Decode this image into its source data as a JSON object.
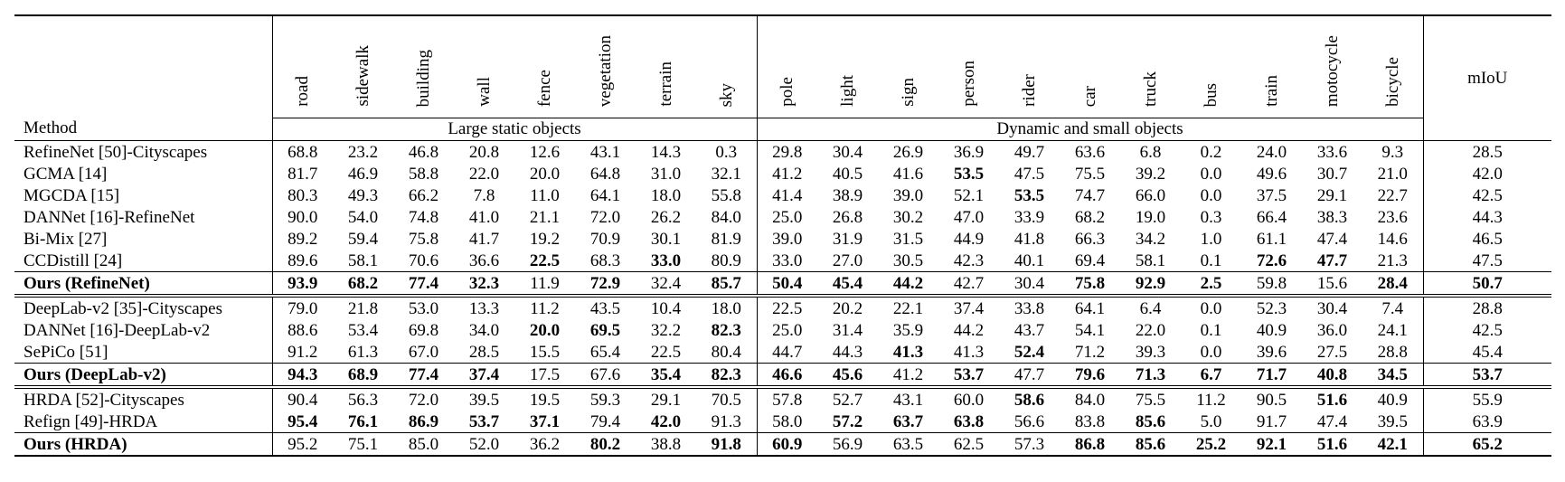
{
  "header": {
    "method": "Method",
    "miou": "mIoU",
    "group_static": "Large static objects",
    "group_dynamic": "Dynamic and small objects",
    "static_classes": [
      "road",
      "sidewalk",
      "building",
      "wall",
      "fence",
      "vegetation",
      "terrain",
      "sky"
    ],
    "dynamic_classes": [
      "pole",
      "light",
      "sign",
      "person",
      "rider",
      "car",
      "truck",
      "bus",
      "train",
      "motocycle",
      "bicycle"
    ]
  },
  "sections": [
    {
      "rows": [
        {
          "method": "RefineNet [50]-Cityscapes",
          "values": [
            "68.8",
            "23.2",
            "46.8",
            "20.8",
            "12.6",
            "43.1",
            "14.3",
            "0.3",
            "29.8",
            "30.4",
            "26.9",
            "36.9",
            "49.7",
            "63.6",
            "6.8",
            "0.2",
            "24.0",
            "33.6",
            "9.3"
          ],
          "miou": "28.5",
          "bold": []
        },
        {
          "method": "GCMA [14]",
          "values": [
            "81.7",
            "46.9",
            "58.8",
            "22.0",
            "20.0",
            "64.8",
            "31.0",
            "32.1",
            "41.2",
            "40.5",
            "41.6",
            "53.5",
            "47.5",
            "75.5",
            "39.2",
            "0.0",
            "49.6",
            "30.7",
            "21.0"
          ],
          "miou": "42.0",
          "bold": [
            11
          ]
        },
        {
          "method": "MGCDA [15]",
          "values": [
            "80.3",
            "49.3",
            "66.2",
            "7.8",
            "11.0",
            "64.1",
            "18.0",
            "55.8",
            "41.4",
            "38.9",
            "39.0",
            "52.1",
            "53.5",
            "74.7",
            "66.0",
            "0.0",
            "37.5",
            "29.1",
            "22.7"
          ],
          "miou": "42.5",
          "bold": [
            12
          ]
        },
        {
          "method": "DANNet [16]-RefineNet",
          "values": [
            "90.0",
            "54.0",
            "74.8",
            "41.0",
            "21.1",
            "72.0",
            "26.2",
            "84.0",
            "25.0",
            "26.8",
            "30.2",
            "47.0",
            "33.9",
            "68.2",
            "19.0",
            "0.3",
            "66.4",
            "38.3",
            "23.6"
          ],
          "miou": "44.3",
          "bold": []
        },
        {
          "method": "Bi-Mix [27]",
          "values": [
            "89.2",
            "59.4",
            "75.8",
            "41.7",
            "19.2",
            "70.9",
            "30.1",
            "81.9",
            "39.0",
            "31.9",
            "31.5",
            "44.9",
            "41.8",
            "66.3",
            "34.2",
            "1.0",
            "61.1",
            "47.4",
            "14.6"
          ],
          "miou": "46.5",
          "bold": []
        },
        {
          "method": "CCDistill [24]",
          "values": [
            "89.6",
            "58.1",
            "70.6",
            "36.6",
            "22.5",
            "68.3",
            "33.0",
            "80.9",
            "33.0",
            "27.0",
            "30.5",
            "42.3",
            "40.1",
            "69.4",
            "58.1",
            "0.1",
            "72.6",
            "47.7",
            "21.3"
          ],
          "miou": "47.5",
          "bold": [
            4,
            6,
            16,
            17
          ]
        },
        {
          "method": "Ours (RefineNet)",
          "method_bold": true,
          "values": [
            "93.9",
            "68.2",
            "77.4",
            "32.3",
            "11.9",
            "72.9",
            "32.4",
            "85.7",
            "50.4",
            "45.4",
            "44.2",
            "42.7",
            "30.4",
            "75.8",
            "92.9",
            "2.5",
            "59.8",
            "15.6",
            "28.4"
          ],
          "miou": "50.7",
          "miou_bold": true,
          "bold": [
            0,
            1,
            2,
            3,
            5,
            7,
            8,
            9,
            10,
            13,
            14,
            15,
            18
          ]
        }
      ]
    },
    {
      "rows": [
        {
          "method": "DeepLab-v2 [35]-Cityscapes",
          "values": [
            "79.0",
            "21.8",
            "53.0",
            "13.3",
            "11.2",
            "43.5",
            "10.4",
            "18.0",
            "22.5",
            "20.2",
            "22.1",
            "37.4",
            "33.8",
            "64.1",
            "6.4",
            "0.0",
            "52.3",
            "30.4",
            "7.4"
          ],
          "miou": "28.8",
          "bold": []
        },
        {
          "method": "DANNet [16]-DeepLab-v2",
          "values": [
            "88.6",
            "53.4",
            "69.8",
            "34.0",
            "20.0",
            "69.5",
            "32.2",
            "82.3",
            "25.0",
            "31.4",
            "35.9",
            "44.2",
            "43.7",
            "54.1",
            "22.0",
            "0.1",
            "40.9",
            "36.0",
            "24.1"
          ],
          "miou": "42.5",
          "bold": [
            4,
            5,
            7
          ]
        },
        {
          "method": "SePiCo [51]",
          "values": [
            "91.2",
            "61.3",
            "67.0",
            "28.5",
            "15.5",
            "65.4",
            "22.5",
            "80.4",
            "44.7",
            "44.3",
            "41.3",
            "41.3",
            "52.4",
            "71.2",
            "39.3",
            "0.0",
            "39.6",
            "27.5",
            "28.8"
          ],
          "miou": "45.4",
          "bold": [
            10,
            12
          ]
        },
        {
          "method": "Ours (DeepLab-v2)",
          "method_bold": true,
          "values": [
            "94.3",
            "68.9",
            "77.4",
            "37.4",
            "17.5",
            "67.6",
            "35.4",
            "82.3",
            "46.6",
            "45.6",
            "41.2",
            "53.7",
            "47.7",
            "79.6",
            "71.3",
            "6.7",
            "71.7",
            "40.8",
            "34.5"
          ],
          "miou": "53.7",
          "miou_bold": true,
          "bold": [
            0,
            1,
            2,
            3,
            6,
            7,
            8,
            9,
            11,
            13,
            14,
            15,
            16,
            17,
            18
          ]
        }
      ]
    },
    {
      "rows": [
        {
          "method": "HRDA [52]-Cityscapes",
          "values": [
            "90.4",
            "56.3",
            "72.0",
            "39.5",
            "19.5",
            "59.3",
            "29.1",
            "70.5",
            "57.8",
            "52.7",
            "43.1",
            "60.0",
            "58.6",
            "84.0",
            "75.5",
            "11.2",
            "90.5",
            "51.6",
            "40.9"
          ],
          "miou": "55.9",
          "bold": [
            12,
            17
          ]
        },
        {
          "method": "Refign [49]-HRDA",
          "values": [
            "95.4",
            "76.1",
            "86.9",
            "53.7",
            "37.1",
            "79.4",
            "42.0",
            "91.3",
            "58.0",
            "57.2",
            "63.7",
            "63.8",
            "56.6",
            "83.8",
            "85.6",
            "5.0",
            "91.7",
            "47.4",
            "39.5"
          ],
          "miou": "63.9",
          "bold": [
            0,
            1,
            2,
            3,
            4,
            6,
            9,
            10,
            11,
            14
          ]
        },
        {
          "method": "Ours (HRDA)",
          "method_bold": true,
          "values": [
            "95.2",
            "75.1",
            "85.0",
            "52.0",
            "36.2",
            "80.2",
            "38.8",
            "91.8",
            "60.9",
            "56.9",
            "63.5",
            "62.5",
            "57.3",
            "86.8",
            "85.6",
            "25.2",
            "92.1",
            "51.6",
            "42.1"
          ],
          "miou": "65.2",
          "miou_bold": true,
          "bold": [
            5,
            7,
            8,
            13,
            14,
            15,
            16,
            17,
            18
          ]
        }
      ]
    }
  ]
}
